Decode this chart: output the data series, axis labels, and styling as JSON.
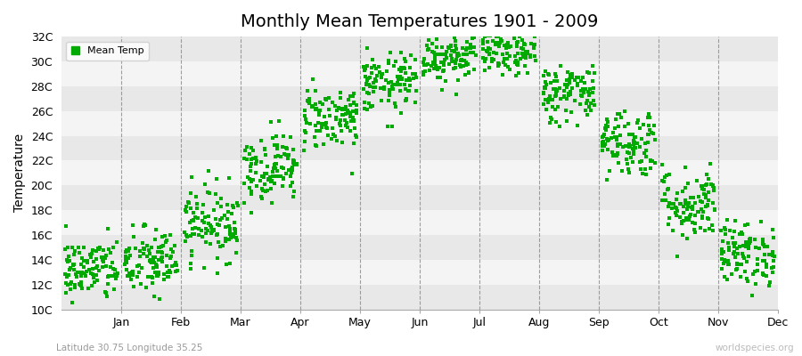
{
  "title": "Monthly Mean Temperatures 1901 - 2009",
  "ylabel": "Temperature",
  "subtitle": "Latitude 30.75 Longitude 35.25",
  "watermark": "worldspecies.org",
  "dot_color": "#00aa00",
  "bg_color": "#ffffff",
  "plot_bg_color": "#ffffff",
  "band_colors": [
    "#e8e8e8",
    "#f4f4f4"
  ],
  "legend_label": "Mean Temp",
  "ylim": [
    10,
    32
  ],
  "yticks": [
    10,
    12,
    14,
    16,
    18,
    20,
    22,
    24,
    26,
    28,
    30,
    32
  ],
  "ytick_labels": [
    "10C",
    "12C",
    "14C",
    "16C",
    "18C",
    "20C",
    "22C",
    "24C",
    "26C",
    "28C",
    "30C",
    "32C"
  ],
  "months": [
    "Jan",
    "Feb",
    "Mar",
    "Apr",
    "May",
    "Jun",
    "Jul",
    "Aug",
    "Sep",
    "Oct",
    "Nov",
    "Dec"
  ],
  "month_means": [
    13.2,
    13.8,
    17.0,
    21.5,
    25.5,
    28.2,
    30.5,
    30.8,
    27.5,
    23.5,
    18.5,
    14.5
  ],
  "month_stds": [
    1.3,
    1.4,
    1.5,
    1.4,
    1.3,
    1.2,
    1.1,
    1.0,
    1.2,
    1.4,
    1.5,
    1.3
  ],
  "n_points": 109,
  "marker_size": 3.0,
  "dashed_color": "#888888",
  "title_fontsize": 14,
  "axis_fontsize": 9,
  "ylabel_fontsize": 10
}
